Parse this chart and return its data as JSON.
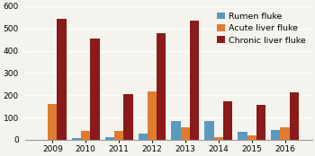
{
  "years": [
    2009,
    2010,
    2011,
    2012,
    2013,
    2014,
    2015,
    2016
  ],
  "rumen_fluke": [
    0,
    8,
    12,
    28,
    85,
    85,
    38,
    45
  ],
  "acute_liver": [
    160,
    42,
    42,
    218,
    58,
    12,
    22,
    55
  ],
  "chronic_liver": [
    545,
    455,
    205,
    478,
    535,
    172,
    158,
    212
  ],
  "colors": {
    "rumen": "#5b9abf",
    "acute": "#e07b30",
    "chronic": "#8b1a1a"
  },
  "legend_labels": [
    "Rumen fluke",
    "Acute liver fluke",
    "Chronic liver fluke"
  ],
  "ylim": [
    0,
    600
  ],
  "yticks": [
    0,
    100,
    200,
    300,
    400,
    500,
    600
  ],
  "background_color": "#f5f3ee",
  "grid_color": "#ffffff",
  "bar_width": 0.28,
  "figsize": [
    3.5,
    1.74
  ],
  "dpi": 100
}
